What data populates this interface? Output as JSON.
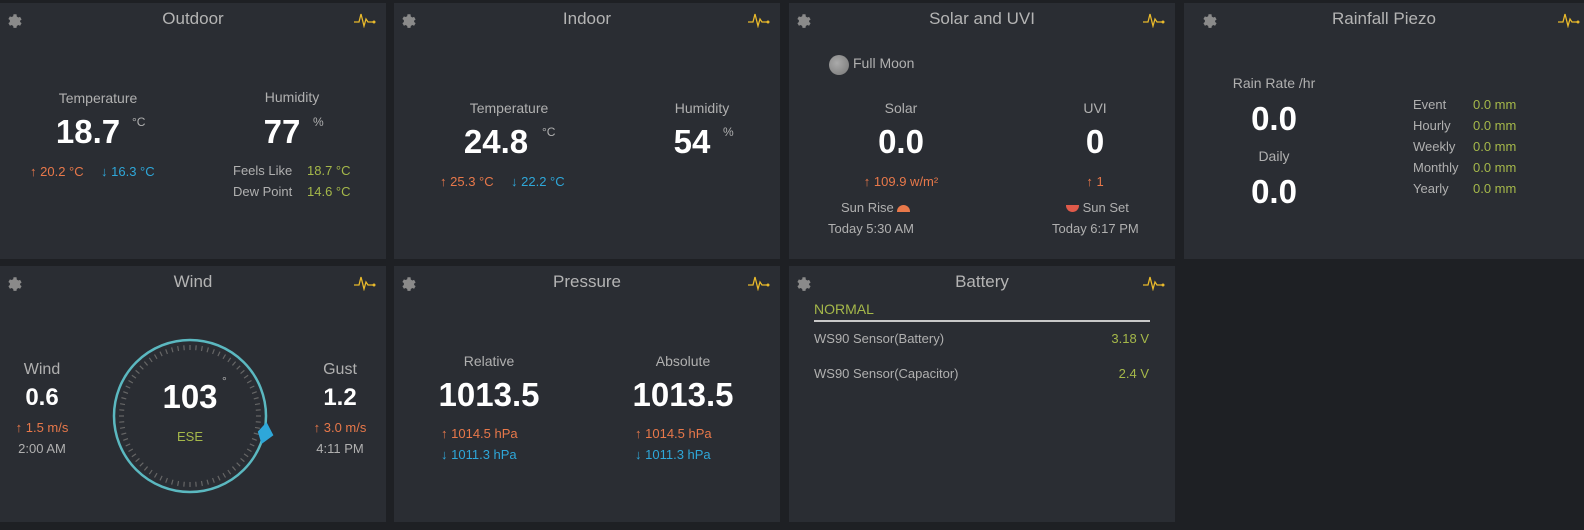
{
  "colors": {
    "high": "#e8784a",
    "low": "#2ea7d9",
    "value": "#a5b84a",
    "accent": "#e8b92b",
    "compass": "#5bb8c0"
  },
  "outdoor": {
    "title": "Outdoor",
    "temp_label": "Temperature",
    "temp": "18.7",
    "temp_unit": "°C",
    "temp_high": "20.2 °C",
    "temp_low": "16.3 °C",
    "hum_label": "Humidity",
    "hum": "77",
    "hum_unit": "%",
    "feels_label": "Feels Like",
    "feels": "18.7 °C",
    "dew_label": "Dew Point",
    "dew": "14.6 °C"
  },
  "indoor": {
    "title": "Indoor",
    "temp_label": "Temperature",
    "temp": "24.8",
    "temp_unit": "°C",
    "temp_high": "25.3 °C",
    "temp_low": "22.2 °C",
    "hum_label": "Humidity",
    "hum": "54",
    "hum_unit": "%"
  },
  "solar": {
    "title": "Solar and UVI",
    "moon": "Full Moon",
    "solar_label": "Solar",
    "solar": "0.0",
    "solar_high": "109.9 w/m²",
    "uvi_label": "UVI",
    "uvi": "0",
    "uvi_high": "1",
    "sunrise_label": "Sun Rise",
    "sunrise": "Today 5:30 AM",
    "sunset_label": "Sun Set",
    "sunset": "Today 6:17 PM"
  },
  "rain": {
    "title": "Rainfall Piezo",
    "rate_label": "Rain Rate /hr",
    "rate": "0.0",
    "daily_label": "Daily",
    "daily": "0.0",
    "rows": [
      {
        "label": "Event",
        "value": "0.0 mm"
      },
      {
        "label": "Hourly",
        "value": "0.0 mm"
      },
      {
        "label": "Weekly",
        "value": "0.0 mm"
      },
      {
        "label": "Monthly",
        "value": "0.0 mm"
      },
      {
        "label": "Yearly",
        "value": "0.0 mm"
      }
    ]
  },
  "wind": {
    "title": "Wind",
    "wind_label": "Wind",
    "wind": "0.6",
    "wind_high": "1.5 m/s",
    "wind_time": "2:00 AM",
    "direction": "103",
    "direction_unit": "°",
    "direction_deg": 103,
    "cardinal": "ESE",
    "gust_label": "Gust",
    "gust": "1.2",
    "gust_high": "3.0 m/s",
    "gust_time": "4:11 PM"
  },
  "pressure": {
    "title": "Pressure",
    "rel_label": "Relative",
    "rel": "1013.5",
    "rel_high": "1014.5 hPa",
    "rel_low": "1011.3 hPa",
    "abs_label": "Absolute",
    "abs": "1013.5",
    "abs_high": "1014.5 hPa",
    "abs_low": "1011.3 hPa"
  },
  "battery": {
    "title": "Battery",
    "status": "NORMAL",
    "rows": [
      {
        "label": "WS90 Sensor(Battery)",
        "value": "3.18 V"
      },
      {
        "label": "WS90 Sensor(Capacitor)",
        "value": "2.4 V"
      }
    ]
  }
}
